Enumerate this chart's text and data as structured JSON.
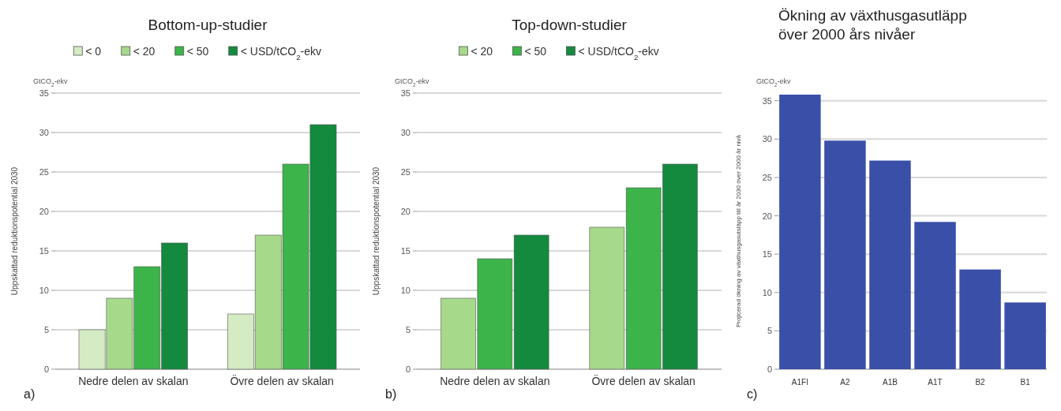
{
  "chart_data": [
    {
      "type": "bar",
      "title": "Bottom-up-studier",
      "ylabel": "Uppskattad reduktionspotential 2030",
      "categories": [
        "Nedre delen av skalan",
        "Övre delen av skalan"
      ],
      "series": [
        {
          "name": "< 0",
          "color": "#d4ebc4",
          "values": [
            5,
            7
          ]
        },
        {
          "name": "< 20",
          "color": "#a6d98a",
          "values": [
            9,
            17
          ]
        },
        {
          "name": "< 50",
          "color": "#3cb44a",
          "values": [
            13,
            26
          ]
        },
        {
          "name": "< USD/tCO$_{2}$-ekv",
          "color": "#138a3e",
          "values": [
            16,
            31
          ]
        }
      ],
      "ylim": [
        0,
        35
      ],
      "yticks": [
        0,
        5,
        10,
        15,
        20,
        25,
        30,
        35
      ],
      "grid": "y",
      "legend": "top",
      "annotations": [
        "GtCO$_{2}$-ekv",
        "a)"
      ]
    },
    {
      "type": "bar",
      "title": "Top-down-studier",
      "ylabel": "Uppskattad reduktionspotential 2030",
      "categories": [
        "Nedre delen av skalan",
        "Övre delen av skalan"
      ],
      "series": [
        {
          "name": "< 20",
          "color": "#a6d98a",
          "values": [
            9,
            18
          ]
        },
        {
          "name": "< 50",
          "color": "#3cb44a",
          "values": [
            14,
            23
          ]
        },
        {
          "name": "< USD/tCO$_{2}$-ekv",
          "color": "#138a3e",
          "values": [
            17,
            26
          ]
        }
      ],
      "ylim": [
        0,
        35
      ],
      "yticks": [
        0,
        5,
        10,
        15,
        20,
        25,
        30,
        35
      ],
      "grid": "y",
      "legend": "top",
      "annotations": [
        "GtCO$_{2}$-ekv",
        "b)"
      ]
    },
    {
      "type": "bar",
      "title": "Ökning av växthusgasutläpp över 2000 års nivåer",
      "ylabel": "Projicerad ökning av växthusgasutsläpp till år 2030 över 2000 år nivå",
      "categories": [
        "A1FI",
        "A2",
        "A1B",
        "A1T",
        "B2",
        "B1"
      ],
      "values": [
        35.8,
        29.8,
        27.2,
        19.2,
        13,
        8.7
      ],
      "color": "#3a4fa8",
      "ylim": [
        0,
        36
      ],
      "yticks": [
        0,
        5,
        10,
        15,
        20,
        25,
        30,
        35
      ],
      "grid": "y",
      "legend": false,
      "annotations": [
        "GtCO$_{2}$-ekv",
        "c)"
      ]
    }
  ]
}
